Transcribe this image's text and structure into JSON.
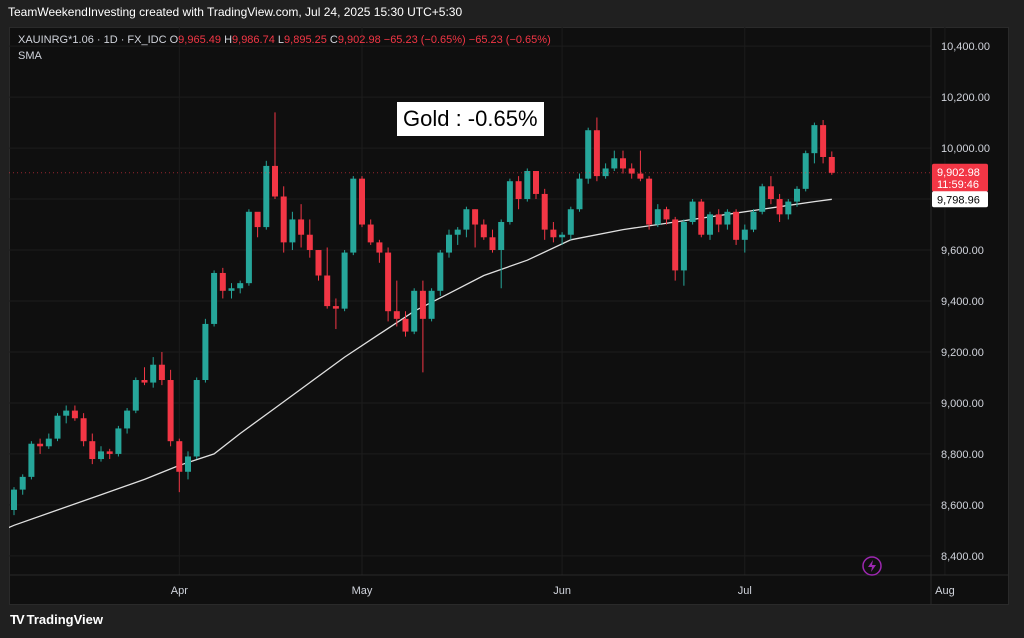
{
  "credit": "TeamWeekendInvesting created with TradingView.com, Jul 24, 2025 15:30 UTC+5:30",
  "legend": {
    "symbol": "XAUINRG*1.06 · 1D · FX_IDC",
    "o_label": "O",
    "o_value": "9,965.49",
    "h_label": "H",
    "h_value": "9,986.74",
    "l_label": "L",
    "l_value": "9,895.25",
    "c_label": "C",
    "c_value": "9,902.98",
    "change": "−65.23 (−0.65%)",
    "change2": "−65.23 (−0.65%)",
    "indicator": "SMA"
  },
  "annotation": "Gold : -0.65%",
  "brand": {
    "logo": "TV",
    "name": "TradingView"
  },
  "last_price_tag": {
    "price": "9,902.98",
    "countdown": "11:59:46"
  },
  "sma_tag": "9,798.96",
  "colors": {
    "up": "#26a69a",
    "down": "#f23645",
    "sma": "#e0e0e0",
    "background": "#0f0f0f",
    "grid": "#1c1c1c",
    "text": "#d1d4dc",
    "flash": "#9c27b0"
  },
  "flash_icon": "lightning-icon",
  "chart_data": {
    "type": "candlestick",
    "xlabel": "",
    "ylabel": "",
    "ylim": [
      8325,
      10475
    ],
    "y_ticks": [
      8400,
      8600,
      8800,
      9000,
      9200,
      9400,
      9600,
      9800,
      10000,
      10200,
      10400
    ],
    "y_tick_labels": [
      "8,400.00",
      "8,600.00",
      "8,800.00",
      "9,000.00",
      "9,200.00",
      "9,400.00",
      "9,600.00",
      "9,800.00",
      "10,000.00",
      "10,200.00",
      "10,400.00"
    ],
    "x_ticks": [
      {
        "label": "Apr",
        "index": 19
      },
      {
        "label": "May",
        "index": 40
      },
      {
        "label": "Jun",
        "index": 63
      },
      {
        "label": "Jul",
        "index": 84
      },
      {
        "label": "Aug",
        "index": 107
      }
    ],
    "candles": [
      [
        8580,
        8670,
        8560,
        8660
      ],
      [
        8660,
        8720,
        8640,
        8710
      ],
      [
        8710,
        8850,
        8700,
        8840
      ],
      [
        8840,
        8860,
        8800,
        8830
      ],
      [
        8830,
        8880,
        8820,
        8860
      ],
      [
        8860,
        8960,
        8850,
        8950
      ],
      [
        8950,
        8990,
        8920,
        8970
      ],
      [
        8970,
        8990,
        8930,
        8940
      ],
      [
        8940,
        8960,
        8830,
        8850
      ],
      [
        8850,
        8880,
        8760,
        8780
      ],
      [
        8780,
        8830,
        8770,
        8810
      ],
      [
        8810,
        8820,
        8780,
        8800
      ],
      [
        8800,
        8910,
        8790,
        8900
      ],
      [
        8900,
        8980,
        8880,
        8970
      ],
      [
        8970,
        9100,
        8960,
        9090
      ],
      [
        9090,
        9140,
        9070,
        9080
      ],
      [
        9080,
        9180,
        9060,
        9150
      ],
      [
        9150,
        9200,
        9070,
        9090
      ],
      [
        9090,
        9130,
        8830,
        8850
      ],
      [
        8850,
        8860,
        8650,
        8730
      ],
      [
        8730,
        8810,
        8700,
        8790
      ],
      [
        8790,
        9100,
        8780,
        9090
      ],
      [
        9090,
        9330,
        9080,
        9310
      ],
      [
        9310,
        9520,
        9300,
        9510
      ],
      [
        9510,
        9530,
        9410,
        9440
      ],
      [
        9440,
        9470,
        9410,
        9450
      ],
      [
        9450,
        9480,
        9430,
        9470
      ],
      [
        9470,
        9760,
        9460,
        9750
      ],
      [
        9750,
        9730,
        9650,
        9690
      ],
      [
        9690,
        9950,
        9680,
        9930
      ],
      [
        9930,
        10140,
        9800,
        9810
      ],
      [
        9810,
        9850,
        9590,
        9630
      ],
      [
        9630,
        9750,
        9600,
        9720
      ],
      [
        9720,
        9780,
        9610,
        9660
      ],
      [
        9660,
        9720,
        9570,
        9600
      ],
      [
        9600,
        9600,
        9480,
        9500
      ],
      [
        9500,
        9610,
        9370,
        9380
      ],
      [
        9380,
        9410,
        9290,
        9370
      ],
      [
        9370,
        9600,
        9360,
        9590
      ],
      [
        9590,
        9890,
        9580,
        9880
      ],
      [
        9880,
        9890,
        9690,
        9700
      ],
      [
        9700,
        9720,
        9620,
        9630
      ],
      [
        9630,
        9640,
        9550,
        9590
      ],
      [
        9590,
        9610,
        9320,
        9360
      ],
      [
        9360,
        9480,
        9300,
        9330
      ],
      [
        9330,
        9360,
        9260,
        9280
      ],
      [
        9280,
        9450,
        9270,
        9440
      ],
      [
        9440,
        9480,
        9120,
        9330
      ],
      [
        9330,
        9450,
        9320,
        9440
      ],
      [
        9440,
        9600,
        9420,
        9590
      ],
      [
        9590,
        9680,
        9570,
        9660
      ],
      [
        9660,
        9690,
        9620,
        9680
      ],
      [
        9680,
        9770,
        9650,
        9760
      ],
      [
        9760,
        9760,
        9610,
        9700
      ],
      [
        9700,
        9720,
        9640,
        9650
      ],
      [
        9650,
        9680,
        9590,
        9600
      ],
      [
        9600,
        9720,
        9450,
        9710
      ],
      [
        9710,
        9880,
        9700,
        9870
      ],
      [
        9870,
        9890,
        9760,
        9800
      ],
      [
        9800,
        9920,
        9790,
        9910
      ],
      [
        9910,
        9910,
        9800,
        9820
      ],
      [
        9820,
        9840,
        9640,
        9680
      ],
      [
        9680,
        9710,
        9630,
        9650
      ],
      [
        9650,
        9670,
        9620,
        9660
      ],
      [
        9660,
        9770,
        9640,
        9760
      ],
      [
        9760,
        9900,
        9750,
        9880
      ],
      [
        9880,
        10080,
        9860,
        10070
      ],
      [
        10070,
        10120,
        9870,
        9890
      ],
      [
        9890,
        9940,
        9880,
        9920
      ],
      [
        9920,
        9990,
        9910,
        9960
      ],
      [
        9960,
        9990,
        9900,
        9920
      ],
      [
        9920,
        9940,
        9880,
        9900
      ],
      [
        9900,
        9990,
        9870,
        9880
      ],
      [
        9880,
        9890,
        9680,
        9700
      ],
      [
        9700,
        9780,
        9690,
        9760
      ],
      [
        9760,
        9770,
        9700,
        9720
      ],
      [
        9720,
        9730,
        9480,
        9520
      ],
      [
        9520,
        9720,
        9460,
        9710
      ],
      [
        9710,
        9800,
        9700,
        9790
      ],
      [
        9790,
        9800,
        9650,
        9660
      ],
      [
        9660,
        9750,
        9640,
        9740
      ],
      [
        9740,
        9760,
        9670,
        9700
      ],
      [
        9700,
        9760,
        9680,
        9750
      ],
      [
        9750,
        9760,
        9620,
        9640
      ],
      [
        9640,
        9700,
        9590,
        9680
      ],
      [
        9680,
        9760,
        9670,
        9750
      ],
      [
        9750,
        9860,
        9740,
        9850
      ],
      [
        9850,
        9890,
        9780,
        9800
      ],
      [
        9800,
        9820,
        9710,
        9740
      ],
      [
        9740,
        9800,
        9720,
        9790
      ],
      [
        9790,
        9850,
        9770,
        9840
      ],
      [
        9840,
        9990,
        9830,
        9980
      ],
      [
        9980,
        10100,
        9940,
        10090
      ],
      [
        10090,
        10110,
        9940,
        9965
      ],
      [
        9965,
        9986.74,
        9895.25,
        9902.98
      ]
    ],
    "sma": {
      "name": "SMA",
      "points": [
        [
          -7,
          8420
        ],
        [
          0,
          8520
        ],
        [
          5,
          8580
        ],
        [
          10,
          8640
        ],
        [
          15,
          8700
        ],
        [
          19,
          8755
        ],
        [
          23,
          8800
        ],
        [
          26,
          8880
        ],
        [
          30,
          8980
        ],
        [
          34,
          9080
        ],
        [
          38,
          9180
        ],
        [
          42,
          9270
        ],
        [
          46,
          9360
        ],
        [
          50,
          9430
        ],
        [
          54,
          9500
        ],
        [
          59,
          9560
        ],
        [
          64,
          9640
        ],
        [
          70,
          9680
        ],
        [
          76,
          9710
        ],
        [
          82,
          9740
        ],
        [
          88,
          9770
        ],
        [
          92,
          9790
        ],
        [
          94,
          9799
        ]
      ]
    }
  }
}
